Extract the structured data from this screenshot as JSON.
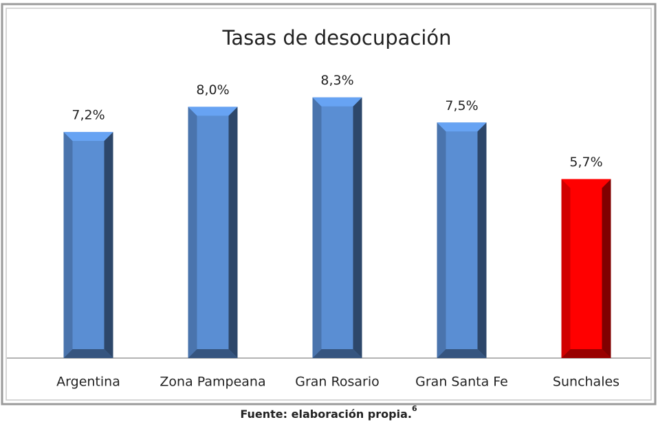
{
  "chart_data": {
    "type": "bar",
    "title": "Tasas de desocupación",
    "categories": [
      "Argentina",
      "Zona Pampeana",
      "Gran Rosario",
      "Gran Santa Fe",
      "Sunchales"
    ],
    "values": [
      7.2,
      8.0,
      8.3,
      7.5,
      5.7
    ],
    "value_labels": [
      "7,2%",
      "8,0%",
      "8,3%",
      "7,5%",
      "5,7%"
    ],
    "colors": [
      "#5a8ed3",
      "#5a8ed3",
      "#5a8ed3",
      "#5a8ed3",
      "#ff0000"
    ],
    "ylim": [
      0,
      10
    ]
  },
  "caption": {
    "text": "Fuente: elaboración propia.",
    "note": "6"
  }
}
